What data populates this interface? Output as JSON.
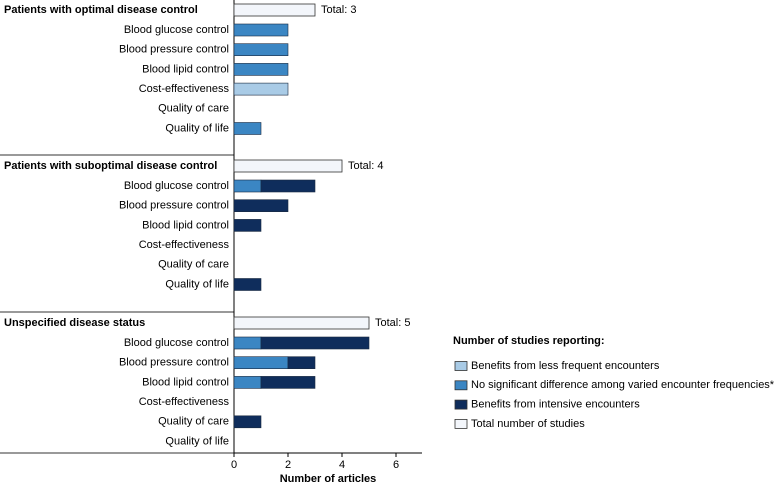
{
  "chart_data": {
    "type": "bar",
    "orientation": "horizontal",
    "xlabel": "Number of articles",
    "xlim": [
      0,
      7
    ],
    "xticks": [
      0,
      2,
      4,
      6
    ],
    "legend_title": "Number of studies reporting:",
    "categories": [
      "Blood glucose control",
      "Blood pressure control",
      "Blood lipid control",
      "Cost-effectiveness",
      "Quality of care",
      "Quality of life"
    ],
    "series": [
      {
        "name": "Benefits from less frequent encounters",
        "color": "#a9cbe6"
      },
      {
        "name": "No significant difference among varied encounter frequencies*",
        "color": "#3b86c3"
      },
      {
        "name": "Benefits from intensive encounters",
        "color": "#0f2d5c"
      },
      {
        "name": "Total number of studies",
        "color": "#f3f6fb"
      }
    ],
    "groups": [
      {
        "title": "Patients with optimal disease control",
        "values": [
          [
            0,
            0,
            0,
            2,
            0,
            0
          ],
          [
            2,
            2,
            2,
            0,
            0,
            1
          ],
          [
            0,
            0,
            0,
            0,
            0,
            0
          ]
        ]
      },
      {
        "title": "Patients with suboptimal disease control",
        "values": [
          [
            0,
            0,
            0,
            0,
            0,
            0
          ],
          [
            1,
            0,
            0,
            0,
            0,
            0
          ],
          [
            2,
            2,
            1,
            0,
            0,
            1
          ]
        ]
      },
      {
        "title": "Unspecified disease status",
        "values": [
          [
            0,
            0,
            0,
            0,
            0,
            0
          ],
          [
            1,
            2,
            1,
            0,
            0,
            0
          ],
          [
            4,
            1,
            2,
            0,
            1,
            0
          ]
        ]
      }
    ],
    "totals": {
      "values": [
        3,
        4,
        5
      ],
      "value_labels": [
        "Total: 3",
        "Total: 4",
        "Total: 5"
      ]
    }
  }
}
